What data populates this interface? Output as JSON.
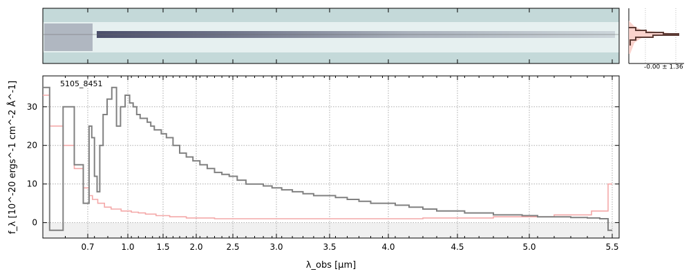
{
  "chart_data": {
    "type": "line",
    "object_label": "5105_8451",
    "xlabel": "λ_obs [μm]",
    "ylabel": "f_λ [10^-20 ergs^-1 cm^-2 Å^-1]",
    "x_scale": "reciprocal-like (non-linear)",
    "xlim": [
      0.6,
      5.55
    ],
    "ylim": [
      -4,
      38
    ],
    "x_ticks": [
      0.7,
      1.0,
      1.5,
      2.0,
      2.5,
      3.0,
      3.5,
      4.0,
      4.5,
      5.0,
      5.5
    ],
    "x_tick_labels": [
      "0.7",
      "1.0",
      "1.5",
      "2.0",
      "2.5",
      "3.0",
      "3.5",
      "4.0",
      "4.5",
      "5.0",
      "5.5"
    ],
    "y_ticks": [
      0,
      10,
      20,
      30
    ],
    "y_tick_labels": [
      "0",
      "10",
      "20",
      "30"
    ],
    "grid": true,
    "series": [
      {
        "name": "",
        "color": "#808080",
        "style": "steps",
        "x": [
          0.6,
          0.63,
          0.66,
          0.68,
          0.7,
          0.72,
          0.74,
          0.76,
          0.78,
          0.8,
          0.83,
          0.86,
          0.9,
          0.93,
          0.96,
          1.0,
          1.05,
          1.1,
          1.15,
          1.2,
          1.25,
          1.3,
          1.35,
          1.4,
          1.45,
          1.5,
          1.6,
          1.7,
          1.8,
          1.9,
          2.0,
          2.1,
          2.2,
          2.3,
          2.4,
          2.5,
          2.6,
          2.7,
          2.8,
          2.9,
          3.0,
          3.1,
          3.2,
          3.3,
          3.4,
          3.5,
          3.6,
          3.7,
          3.8,
          3.9,
          4.0,
          4.1,
          4.2,
          4.3,
          4.4,
          4.5,
          4.6,
          4.7,
          4.8,
          4.9,
          5.0,
          5.1,
          5.2,
          5.3,
          5.4,
          5.45,
          5.5
        ],
        "values": [
          35,
          -2,
          30,
          15,
          5,
          25,
          22,
          12,
          8,
          20,
          28,
          32,
          35,
          25,
          30,
          33,
          31,
          30,
          28,
          27,
          27,
          26,
          25,
          24,
          24,
          23,
          22,
          20,
          18,
          17,
          16,
          15,
          14,
          13,
          12.5,
          12,
          11,
          10,
          10,
          9.5,
          9,
          8.5,
          8,
          7.5,
          7,
          7,
          6.5,
          6,
          5.5,
          5,
          5,
          4.5,
          4,
          3.5,
          3,
          3,
          2.5,
          2.5,
          2,
          2,
          1.8,
          1.5,
          1.5,
          1.3,
          1.2,
          1,
          -2
        ]
      },
      {
        "name": "",
        "color": "#f4a8a8",
        "style": "steps",
        "x": [
          0.6,
          0.63,
          0.66,
          0.68,
          0.7,
          0.72,
          0.75,
          0.8,
          0.85,
          0.9,
          1.0,
          1.1,
          1.2,
          1.3,
          1.5,
          1.7,
          2.0,
          2.5,
          3.0,
          3.5,
          4.0,
          4.5,
          5.0,
          5.3,
          5.45,
          5.5
        ],
        "values": [
          33,
          25,
          20,
          14,
          9,
          7,
          6,
          5,
          4,
          3.5,
          3,
          2.7,
          2.5,
          2.2,
          1.8,
          1.5,
          1.2,
          1,
          1,
          1,
          1,
          1.2,
          1.5,
          2,
          3,
          10
        ]
      }
    ],
    "twod_panel": {
      "trace_center": 0,
      "trace_color": "#3a3d5c",
      "background_color": "#c4d9d9"
    },
    "profile_panel": {
      "annotation": "-0.00 ± 1.36",
      "line_color": "#5c3b35",
      "fill_color": "#f9c8c0"
    }
  }
}
